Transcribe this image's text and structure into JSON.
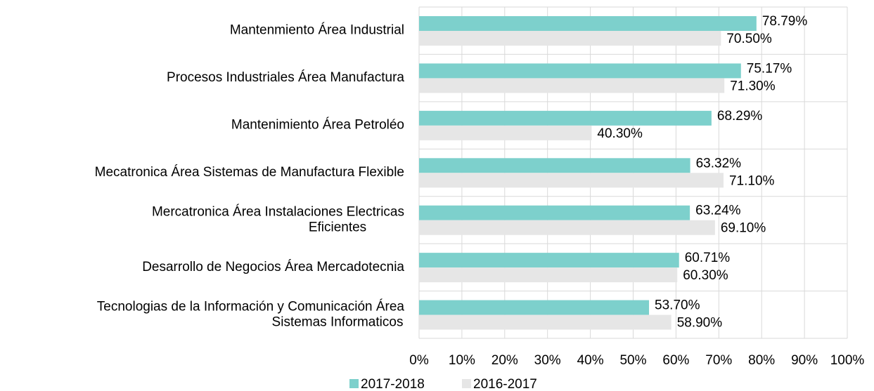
{
  "chart_data": {
    "type": "bar",
    "orientation": "horizontal",
    "categories": [
      "Mantenmiento Área Industrial",
      "Procesos Industriales Área Manufactura",
      "Mantenimiento Área Petroléo",
      "Mecatronica Área Sistemas de Manufactura Flexible",
      "Mercatronica Área Instalaciones Electricas Eficientes",
      "Desarrollo de Negocios Área Mercadotecnia",
      "Tecnologias de la Información y Comunicación Área Sistemas Informaticos"
    ],
    "series": [
      {
        "name": "2017-2018",
        "color": "#7dd0cc",
        "values": [
          78.79,
          75.17,
          68.29,
          63.32,
          63.24,
          60.71,
          53.7
        ],
        "value_labels": [
          "78.79%",
          "75.17%",
          "68.29%",
          "63.32%",
          "63.24%",
          "60.71%",
          "53.70%"
        ]
      },
      {
        "name": "2016-2017",
        "color": "#e6e6e6",
        "values": [
          70.5,
          71.3,
          40.3,
          71.1,
          69.1,
          60.3,
          58.9
        ],
        "value_labels": [
          "70.50%",
          "71.30%",
          "40.30%",
          "71.10%",
          "69.10%",
          "60.30%",
          "58.90%"
        ]
      }
    ],
    "xlim": [
      0,
      100
    ],
    "xticks": [
      {
        "value": 0,
        "label": "0%"
      },
      {
        "value": 10,
        "label": "10%"
      },
      {
        "value": 20,
        "label": "20%"
      },
      {
        "value": 30,
        "label": "30%"
      },
      {
        "value": 40,
        "label": "40%"
      },
      {
        "value": 50,
        "label": "50%"
      },
      {
        "value": 60,
        "label": "60%"
      },
      {
        "value": 70,
        "label": "70%"
      },
      {
        "value": 80,
        "label": "80%"
      },
      {
        "value": 90,
        "label": "90%"
      },
      {
        "value": 100,
        "label": "100%"
      }
    ],
    "grid": true,
    "legend": "bottom"
  }
}
